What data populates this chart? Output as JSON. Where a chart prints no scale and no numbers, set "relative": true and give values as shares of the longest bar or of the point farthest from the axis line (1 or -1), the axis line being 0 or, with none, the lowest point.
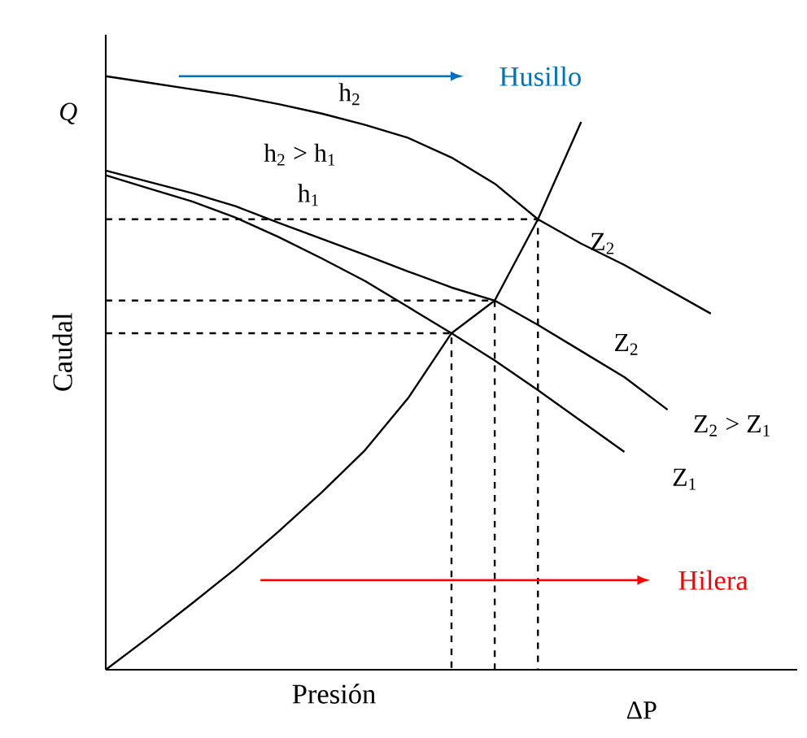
{
  "chart_data": {
    "type": "line",
    "relative": true,
    "xlabel": "Presión",
    "ylabel": "Caudal",
    "marker": "none",
    "categories": [
      null,
      null,
      null,
      null,
      null,
      null,
      null,
      null,
      null,
      null,
      null,
      null,
      null,
      null,
      null,
      null,
      null
    ],
    "series": [
      {
        "color": "#000000",
        "line_style": "solid",
        "values": [
          1.0,
          0.989,
          0.978,
          0.967,
          0.953,
          0.937,
          0.918,
          0.896,
          0.863,
          0.819,
          0.759,
          0.718,
          0.682,
          0.641,
          0.6,
          null,
          null
        ]
      },
      {
        "color": "#000000",
        "line_style": "solid",
        "values": [
          0.841,
          0.822,
          0.803,
          0.781,
          0.753,
          0.726,
          0.699,
          0.671,
          0.644,
          0.622,
          0.581,
          0.537,
          0.493,
          0.438,
          null,
          null,
          null
        ]
      },
      {
        "color": "#000000",
        "line_style": "solid",
        "values": [
          0.833,
          0.811,
          0.789,
          0.762,
          0.729,
          0.693,
          0.655,
          0.611,
          0.567,
          0.521,
          0.471,
          0.419,
          0.367,
          null,
          null,
          null,
          null
        ]
      },
      {
        "color": "#000000",
        "line_style": "solid",
        "values": [
          0,
          0.055,
          0.112,
          0.17,
          0.233,
          0.299,
          0.37,
          0.458,
          0.567,
          0.622,
          0.759,
          0.923,
          null,
          null,
          null,
          null,
          null
        ]
      },
      {
        "type": "step",
        "color": "#000000",
        "line_style": "dashed",
        "values": [
          0.759,
          0.759,
          0.759,
          0.759,
          0.759,
          0.759,
          0.759,
          0.759,
          0.759,
          0.759,
          0,
          null,
          null,
          null,
          null,
          null,
          null
        ]
      },
      {
        "type": "step",
        "color": "#000000",
        "line_style": "dashed",
        "values": [
          0.622,
          0.622,
          0.622,
          0.622,
          0.622,
          0.622,
          0.622,
          0.622,
          0.622,
          0,
          null,
          null,
          null,
          null,
          null,
          null,
          null
        ]
      },
      {
        "type": "step",
        "color": "#000000",
        "line_style": "dashed",
        "values": [
          0.567,
          0.567,
          0.567,
          0.567,
          0.567,
          0.567,
          0.567,
          0.567,
          0,
          null,
          null,
          null,
          null,
          null,
          null,
          null,
          null
        ]
      }
    ],
    "annotations": [
      "Q",
      "ΔP",
      "h$_{2}$",
      "h$_{2}$ > h$_{1}$",
      "h$_{1}$",
      "Z$_{2}$",
      "Z$_{2}$",
      "Z$_{2}$ > Z$_{1}$",
      "Z$_{1}$",
      "Husillo",
      "Hilera"
    ]
  }
}
